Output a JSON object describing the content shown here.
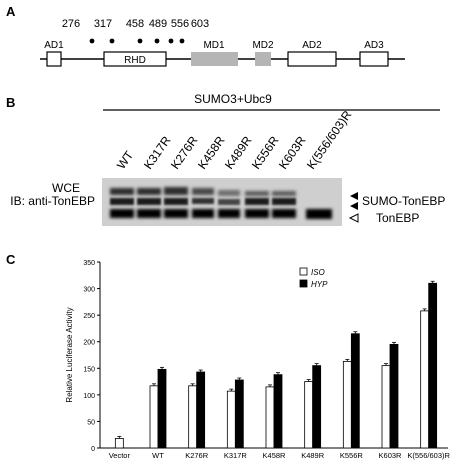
{
  "panels": {
    "a": {
      "letter": "A",
      "domains": [
        "AD1",
        "RHD",
        "MD1",
        "MD2",
        "AD2",
        "AD3"
      ],
      "sites": [
        "276",
        "317",
        "458",
        "489",
        "556",
        "603"
      ]
    },
    "b": {
      "letter": "B",
      "treatment": "SUMO3+Ubc9",
      "lanes": [
        "WT",
        "K317R",
        "K276R",
        "K458R",
        "K489R",
        "K556R",
        "K603R",
        "K(556/603)R"
      ],
      "left_label_1": "WCE",
      "left_label_2": "IB: anti-TonEBP",
      "band_label_1": "SUMO-TonEBP",
      "band_label_2": "TonEBP"
    },
    "c": {
      "letter": "C"
    }
  },
  "chart_data": {
    "type": "bar",
    "ylabel": "Relative Luciferase Activity",
    "ylim": [
      0,
      350
    ],
    "yticks": [
      0,
      50,
      100,
      150,
      200,
      250,
      300,
      350
    ],
    "categories": [
      "Vector",
      "WT",
      "K276R",
      "K317R",
      "K458R",
      "K489R",
      "K556R",
      "K603R",
      "K(556/603)R"
    ],
    "series": [
      {
        "name": "ISO",
        "color": "#ffffff",
        "values": [
          18,
          117,
          117,
          107,
          115,
          125,
          163,
          155,
          258
        ]
      },
      {
        "name": "HYP",
        "color": "#000000",
        "values": [
          null,
          148,
          143,
          128,
          138,
          155,
          215,
          195,
          310
        ]
      }
    ],
    "legend_position": "top-right"
  }
}
